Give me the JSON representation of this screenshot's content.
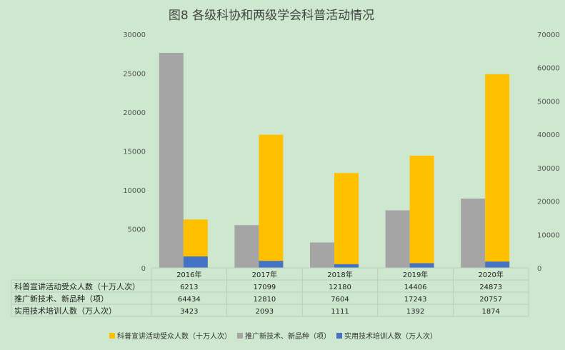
{
  "chart_data": {
    "type": "bar",
    "title": "图8 各级科协和两级学会科普活动情况",
    "categories": [
      "2016年",
      "2017年",
      "2018年",
      "2019年",
      "2020年"
    ],
    "left_axis": {
      "ylim": [
        0,
        30000
      ],
      "ticks": [
        "0",
        "5000",
        "10000",
        "15000",
        "20000",
        "25000",
        "30000"
      ]
    },
    "right_axis": {
      "ylim": [
        0,
        70000
      ],
      "ticks": [
        "0",
        "10000",
        "20000",
        "30000",
        "40000",
        "50000",
        "60000",
        "70000"
      ]
    },
    "series": [
      {
        "name": "科普宣讲活动受众人数（十万人次）",
        "values": [
          6213,
          17099,
          12180,
          14406,
          24873
        ],
        "axis": "left",
        "color": "#ffc000",
        "labels": [
          "6213",
          "17099",
          "12180",
          "14406",
          "24873"
        ]
      },
      {
        "name": "推广新技术、新品种（项）",
        "values": [
          64434,
          12810,
          7604,
          17243,
          20757
        ],
        "axis": "right",
        "color": "#a5a5a5",
        "labels": [
          "64434",
          "12810",
          "7604",
          "17243",
          "20757"
        ]
      },
      {
        "name": "实用技术培训人数（万人次）",
        "values": [
          3423,
          2093,
          1111,
          1392,
          1874
        ],
        "axis": "right",
        "color": "#4472c4",
        "labels": [
          "3423",
          "2093",
          "1111",
          "1392",
          "1874"
        ]
      }
    ],
    "table_row_labels": [
      "科普宣讲活动受众人数（十万人次）",
      "推广新技术、新品种（项）",
      "实用技术培训人数（万人次）"
    ]
  }
}
